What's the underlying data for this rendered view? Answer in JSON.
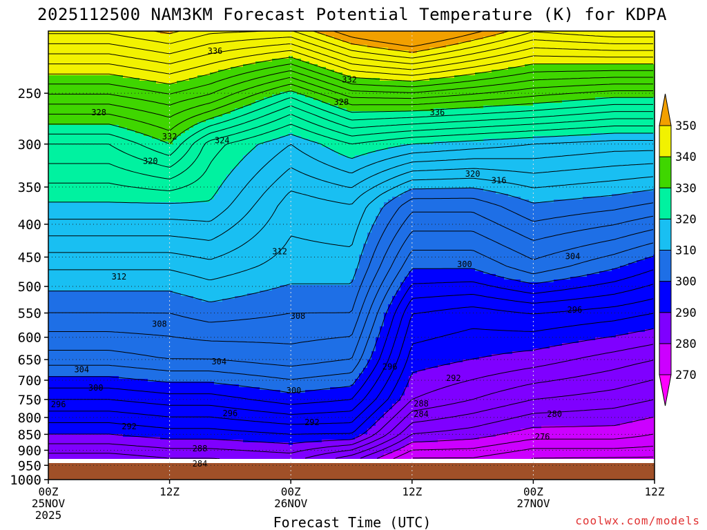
{
  "chart_data": {
    "type": "heatmap",
    "title": "2025112500 NAM3KM Forecast Potential Temperature (K) for KDPA",
    "xlabel": "Forecast Time (UTC)",
    "ylabel": "",
    "x_ticks": [
      {
        "hour": 0,
        "lines": [
          "00Z",
          "25NOV",
          "2025"
        ]
      },
      {
        "hour": 12,
        "lines": [
          "12Z"
        ]
      },
      {
        "hour": 24,
        "lines": [
          "00Z",
          "26NOV"
        ]
      },
      {
        "hour": 36,
        "lines": [
          "12Z"
        ]
      },
      {
        "hour": 48,
        "lines": [
          "00Z",
          "27NOV"
        ]
      },
      {
        "hour": 60,
        "lines": [
          "12Z"
        ]
      }
    ],
    "xlim": [
      0,
      60
    ],
    "y_ticks": [
      250,
      300,
      350,
      400,
      450,
      500,
      550,
      600,
      650,
      700,
      750,
      800,
      850,
      900,
      950,
      1000
    ],
    "y_axis": "pressure (hPa), log scale, inverted",
    "ylim": [
      1000,
      200
    ],
    "grid": true,
    "colorbar": {
      "levels": [
        270,
        280,
        290,
        300,
        310,
        320,
        330,
        340,
        350
      ],
      "labels": [
        "270",
        "280",
        "290",
        "300",
        "310",
        "320",
        "330",
        "340",
        "350"
      ],
      "colors": [
        "#ff00ff",
        "#cc00ff",
        "#7f00ff",
        "#0000ff",
        "#1e6fe6",
        "#19bff2",
        "#00f2a0",
        "#3fd600",
        "#f2f200",
        "#f2a000"
      ],
      "placement": "right"
    },
    "ground_color": "#a05028",
    "credit": "coolwx.com/models",
    "theta_profiles": [
      {
        "hour": 0,
        "p": [
          970,
          925,
          850,
          750,
          650,
          550,
          470,
          370,
          300,
          260,
          225
        ],
        "theta": [
          283,
          285,
          290,
          296,
          303,
          308,
          312,
          320,
          326,
          334,
          342
        ]
      },
      {
        "hour": 6,
        "p": [
          970,
          925,
          850,
          750,
          650,
          550,
          470,
          370,
          300,
          260,
          225
        ],
        "theta": [
          283,
          285,
          290,
          296,
          303,
          308,
          312,
          320,
          326,
          334,
          342
        ]
      },
      {
        "hour": 12,
        "p": [
          970,
          925,
          850,
          750,
          650,
          550,
          470,
          370,
          300,
          260,
          225
        ],
        "theta": [
          284,
          286,
          291,
          297,
          304,
          308,
          312,
          320,
          330,
          336,
          344
        ]
      },
      {
        "hour": 16,
        "p": [
          970,
          925,
          850,
          750,
          650,
          550,
          470,
          370,
          300,
          260,
          225
        ],
        "theta": [
          284,
          286,
          291,
          297,
          304,
          309,
          313,
          320,
          323,
          334,
          342
        ]
      },
      {
        "hour": 24,
        "p": [
          970,
          925,
          850,
          750,
          650,
          550,
          470,
          370,
          300,
          260,
          225
        ],
        "theta": [
          284,
          287,
          292,
          299,
          305,
          308,
          311,
          313,
          318,
          326,
          338
        ]
      },
      {
        "hour": 30,
        "p": [
          970,
          925,
          850,
          750,
          650,
          550,
          470,
          370,
          300,
          260,
          225
        ],
        "theta": [
          280,
          283,
          292,
          298,
          304,
          308,
          311,
          314,
          322,
          332,
          344
        ]
      },
      {
        "hour": 36,
        "p": [
          970,
          925,
          850,
          750,
          650,
          550,
          470,
          370,
          300,
          260,
          225
        ],
        "theta": [
          273,
          276,
          282,
          288,
          291,
          294,
          300,
          307,
          320,
          332,
          346
        ]
      },
      {
        "hour": 42,
        "p": [
          970,
          925,
          850,
          750,
          650,
          550,
          470,
          370,
          300,
          260,
          225
        ],
        "theta": [
          273,
          276,
          281,
          286,
          290,
          293,
          300,
          307,
          319,
          331,
          343
        ]
      },
      {
        "hour": 48,
        "p": [
          970,
          925,
          850,
          750,
          650,
          550,
          470,
          370,
          300,
          260,
          225
        ],
        "theta": [
          272,
          274,
          279,
          284,
          289,
          294,
          303,
          310,
          318,
          330,
          340
        ]
      },
      {
        "hour": 56,
        "p": [
          970,
          925,
          850,
          750,
          650,
          550,
          470,
          370,
          300,
          260,
          225
        ],
        "theta": [
          270,
          274,
          279,
          283,
          287,
          293,
          300,
          309,
          317,
          328,
          340
        ]
      },
      {
        "hour": 60,
        "p": [
          970,
          925,
          850,
          750,
          650,
          550,
          470,
          370,
          300,
          260,
          225
        ],
        "theta": [
          269,
          274,
          278,
          282,
          286,
          292,
          298,
          308,
          317,
          328,
          340
        ]
      }
    ],
    "contour_labels": [
      {
        "text": "336",
        "hour": 16.5,
        "p": 215
      },
      {
        "text": "332",
        "hour": 29.8,
        "p": 238
      },
      {
        "text": "328",
        "hour": 29.0,
        "p": 258
      },
      {
        "text": "328",
        "hour": 5.0,
        "p": 268
      },
      {
        "text": "336",
        "hour": 38.5,
        "p": 268
      },
      {
        "text": "332",
        "hour": 12.0,
        "p": 292
      },
      {
        "text": "324",
        "hour": 17.2,
        "p": 296
      },
      {
        "text": "320",
        "hour": 10.1,
        "p": 319
      },
      {
        "text": "320",
        "hour": 42.0,
        "p": 334
      },
      {
        "text": "316",
        "hour": 44.6,
        "p": 342
      },
      {
        "text": "312",
        "hour": 22.9,
        "p": 441
      },
      {
        "text": "300",
        "hour": 41.2,
        "p": 462
      },
      {
        "text": "304",
        "hour": 51.9,
        "p": 449
      },
      {
        "text": "312",
        "hour": 7.0,
        "p": 483
      },
      {
        "text": "296",
        "hour": 52.1,
        "p": 544
      },
      {
        "text": "308",
        "hour": 11.0,
        "p": 572
      },
      {
        "text": "308",
        "hour": 24.7,
        "p": 556
      },
      {
        "text": "304",
        "hour": 3.3,
        "p": 674
      },
      {
        "text": "304",
        "hour": 16.9,
        "p": 655
      },
      {
        "text": "296",
        "hour": 33.8,
        "p": 667
      },
      {
        "text": "292",
        "hour": 40.1,
        "p": 695
      },
      {
        "text": "300",
        "hour": 4.7,
        "p": 719
      },
      {
        "text": "300",
        "hour": 24.3,
        "p": 727
      },
      {
        "text": "296",
        "hour": 1.0,
        "p": 763
      },
      {
        "text": "288",
        "hour": 36.9,
        "p": 762
      },
      {
        "text": "284",
        "hour": 36.9,
        "p": 790
      },
      {
        "text": "296",
        "hour": 18.0,
        "p": 788
      },
      {
        "text": "280",
        "hour": 50.1,
        "p": 790
      },
      {
        "text": "292",
        "hour": 8.0,
        "p": 826
      },
      {
        "text": "292",
        "hour": 26.1,
        "p": 814
      },
      {
        "text": "276",
        "hour": 48.9,
        "p": 858
      },
      {
        "text": "288",
        "hour": 15.0,
        "p": 895
      },
      {
        "text": "284",
        "hour": 15.0,
        "p": 945
      }
    ]
  }
}
